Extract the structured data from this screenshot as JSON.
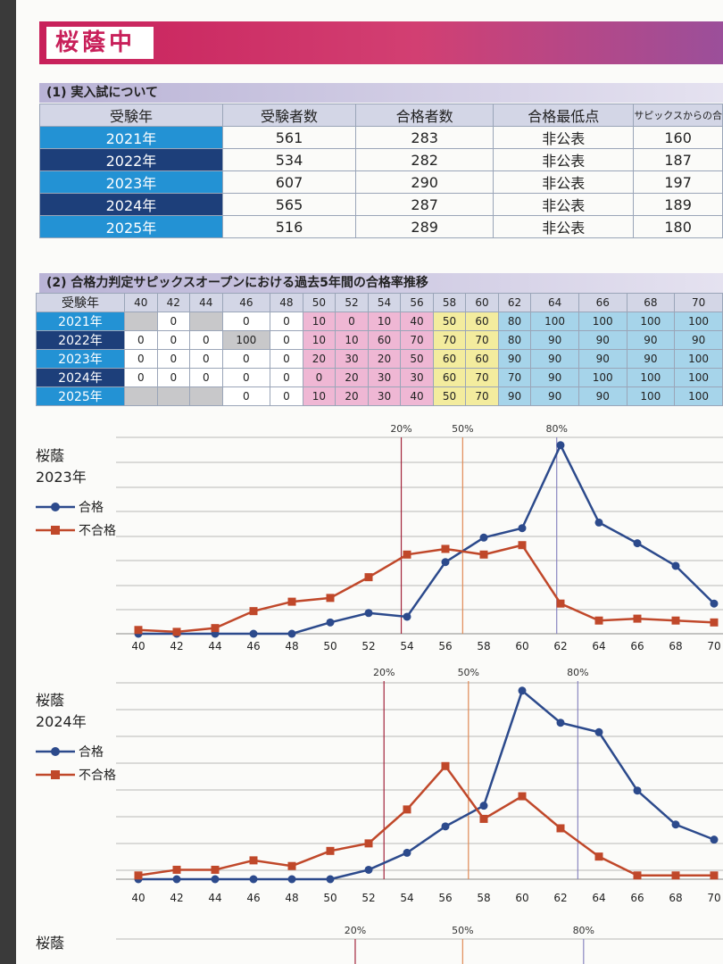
{
  "school": "桜蔭中",
  "section1": {
    "heading": "(1) 実入試について",
    "headers": [
      "受験年",
      "受験者数",
      "合格者数",
      "合格最低点",
      "サピックスからの合"
    ],
    "rows": [
      {
        "year": "2021年",
        "examinees": "561",
        "passed": "283",
        "min": "非公表",
        "sapix": "160"
      },
      {
        "year": "2022年",
        "examinees": "534",
        "passed": "282",
        "min": "非公表",
        "sapix": "187"
      },
      {
        "year": "2023年",
        "examinees": "607",
        "passed": "290",
        "min": "非公表",
        "sapix": "197"
      },
      {
        "year": "2024年",
        "examinees": "565",
        "passed": "287",
        "min": "非公表",
        "sapix": "189"
      },
      {
        "year": "2025年",
        "examinees": "516",
        "passed": "289",
        "min": "非公表",
        "sapix": "180"
      }
    ]
  },
  "section2": {
    "heading": "(2) 合格力判定サピックスオープンにおける過去5年間の合格率推移",
    "corner": "受験年",
    "scores": [
      "40",
      "42",
      "44",
      "46",
      "48",
      "50",
      "52",
      "54",
      "56",
      "58",
      "60",
      "62",
      "64",
      "66",
      "68",
      "70"
    ],
    "rows": [
      {
        "year": "2021年",
        "cells": [
          "",
          "0",
          "",
          "0",
          "0",
          "10",
          "0",
          "10",
          "40",
          "50",
          "60",
          "80",
          "100",
          "100",
          "100",
          "100"
        ]
      },
      {
        "year": "2022年",
        "cells": [
          "0",
          "0",
          "0",
          "100",
          "0",
          "10",
          "10",
          "60",
          "70",
          "70",
          "70",
          "80",
          "90",
          "90",
          "90",
          "90"
        ]
      },
      {
        "year": "2023年",
        "cells": [
          "0",
          "0",
          "0",
          "0",
          "0",
          "20",
          "30",
          "20",
          "50",
          "60",
          "60",
          "90",
          "90",
          "90",
          "90",
          "100"
        ]
      },
      {
        "year": "2024年",
        "cells": [
          "0",
          "0",
          "0",
          "0",
          "0",
          "0",
          "20",
          "30",
          "30",
          "60",
          "70",
          "70",
          "90",
          "100",
          "100",
          "100"
        ]
      },
      {
        "year": "2025年",
        "cells": [
          "",
          "",
          "",
          "0",
          "0",
          "10",
          "20",
          "30",
          "40",
          "50",
          "70",
          "90",
          "90",
          "90",
          "100",
          "100"
        ]
      }
    ]
  },
  "legend": {
    "pass": "合格",
    "fail": "不合格"
  },
  "colors": {
    "pass": "#2c4a8c",
    "fail": "#c0482a",
    "line20": "#a3253c",
    "line50": "#e08a55",
    "line80": "#8a86c0"
  },
  "chart_data": [
    {
      "type": "line",
      "title_line1": "桜蔭",
      "title_line2": "2023年",
      "x": [
        40,
        42,
        44,
        46,
        48,
        50,
        52,
        54,
        56,
        58,
        60,
        62,
        64,
        66,
        68,
        70
      ],
      "xlim": [
        40,
        70
      ],
      "ylim": [
        0,
        100
      ],
      "series": [
        {
          "name": "合格",
          "values": [
            0,
            0,
            0,
            0,
            0,
            6,
            11,
            9,
            38,
            51,
            56,
            100,
            59,
            48,
            36,
            16
          ]
        },
        {
          "name": "不合格",
          "values": [
            2,
            1,
            3,
            12,
            17,
            19,
            30,
            42,
            45,
            42,
            47,
            16,
            7,
            8,
            7,
            6
          ]
        }
      ],
      "ref_lines": [
        {
          "label": "20%",
          "x": 53.7
        },
        {
          "label": "50%",
          "x": 56.9
        },
        {
          "label": "80%",
          "x": 61.8
        }
      ]
    },
    {
      "type": "line",
      "title_line1": "桜蔭",
      "title_line2": "2024年",
      "x": [
        40,
        42,
        44,
        46,
        48,
        50,
        52,
        54,
        56,
        58,
        60,
        62,
        64,
        66,
        68,
        70
      ],
      "xlim": [
        40,
        70
      ],
      "ylim": [
        0,
        100
      ],
      "series": [
        {
          "name": "合格",
          "values": [
            0,
            0,
            0,
            0,
            0,
            0,
            5,
            14,
            28,
            39,
            100,
            83,
            78,
            47,
            29,
            21
          ]
        },
        {
          "name": "不合格",
          "values": [
            2,
            5,
            5,
            10,
            7,
            15,
            19,
            37,
            60,
            32,
            44,
            27,
            12,
            2,
            2,
            2
          ]
        }
      ],
      "ref_lines": [
        {
          "label": "20%",
          "x": 52.8
        },
        {
          "label": "50%",
          "x": 57.2
        },
        {
          "label": "80%",
          "x": 62.9
        }
      ]
    },
    {
      "type": "line",
      "title_line1": "桜蔭",
      "x": [],
      "series": [],
      "ref_lines": [
        {
          "label": "20%",
          "x": 51.3
        },
        {
          "label": "50%",
          "x": 56.9
        },
        {
          "label": "80%",
          "x": 63.2
        }
      ]
    }
  ]
}
